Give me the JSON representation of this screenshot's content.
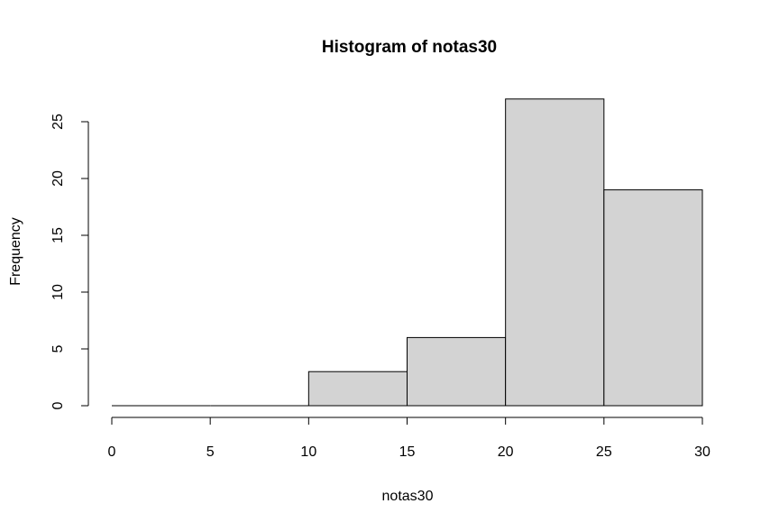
{
  "chart_data": {
    "type": "bar",
    "title": "Histogram of notas30",
    "xlabel": "notas30",
    "ylabel": "Frequency",
    "bins": [
      {
        "from": 0,
        "to": 5,
        "count": 0
      },
      {
        "from": 5,
        "to": 10,
        "count": 0
      },
      {
        "from": 10,
        "to": 15,
        "count": 3
      },
      {
        "from": 15,
        "to": 20,
        "count": 6
      },
      {
        "from": 20,
        "to": 25,
        "count": 27
      },
      {
        "from": 25,
        "to": 30,
        "count": 19
      }
    ],
    "xlim": [
      0,
      30
    ],
    "ylim": [
      0,
      27
    ],
    "x_ticks": [
      0,
      5,
      10,
      15,
      20,
      25,
      30
    ],
    "y_ticks": [
      0,
      5,
      10,
      15,
      20,
      25
    ],
    "bar_fill": "#d3d3d3",
    "bar_stroke": "#000000",
    "grid": false
  }
}
